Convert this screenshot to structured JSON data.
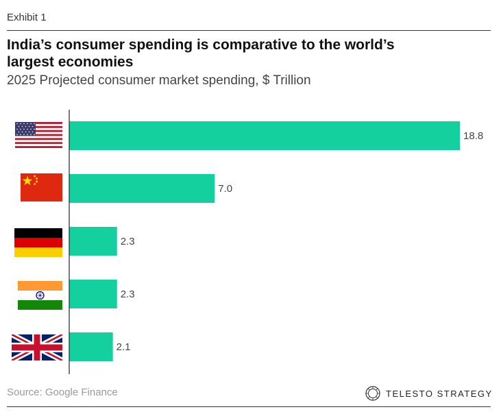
{
  "exhibit_label": "Exhibit 1",
  "title": "India’s consumer spending is comparative to the world’s largest economies",
  "subtitle": "2025 Projected consumer market spending, $ Trillion",
  "source": "Source: Google Finance",
  "brand": "TELESTO STRATEGY",
  "colors": {
    "bar": "#14cf9e",
    "axis": "#333333",
    "label": "#444444"
  },
  "chart_data": {
    "type": "bar",
    "orientation": "horizontal",
    "categories": [
      "United States flag",
      "China flag",
      "Germany flag",
      "India flag",
      "United Kingdom flag"
    ],
    "flags": [
      "us-flag-icon",
      "china-flag-icon",
      "germany-flag-icon",
      "india-flag-icon",
      "uk-flag-icon"
    ],
    "values": [
      18.8,
      7.0,
      2.3,
      2.3,
      2.1
    ],
    "value_labels": [
      "18.8",
      "7.0",
      "2.3",
      "2.3",
      "2.1"
    ],
    "xlim": [
      0,
      18.8
    ],
    "grid": false
  }
}
